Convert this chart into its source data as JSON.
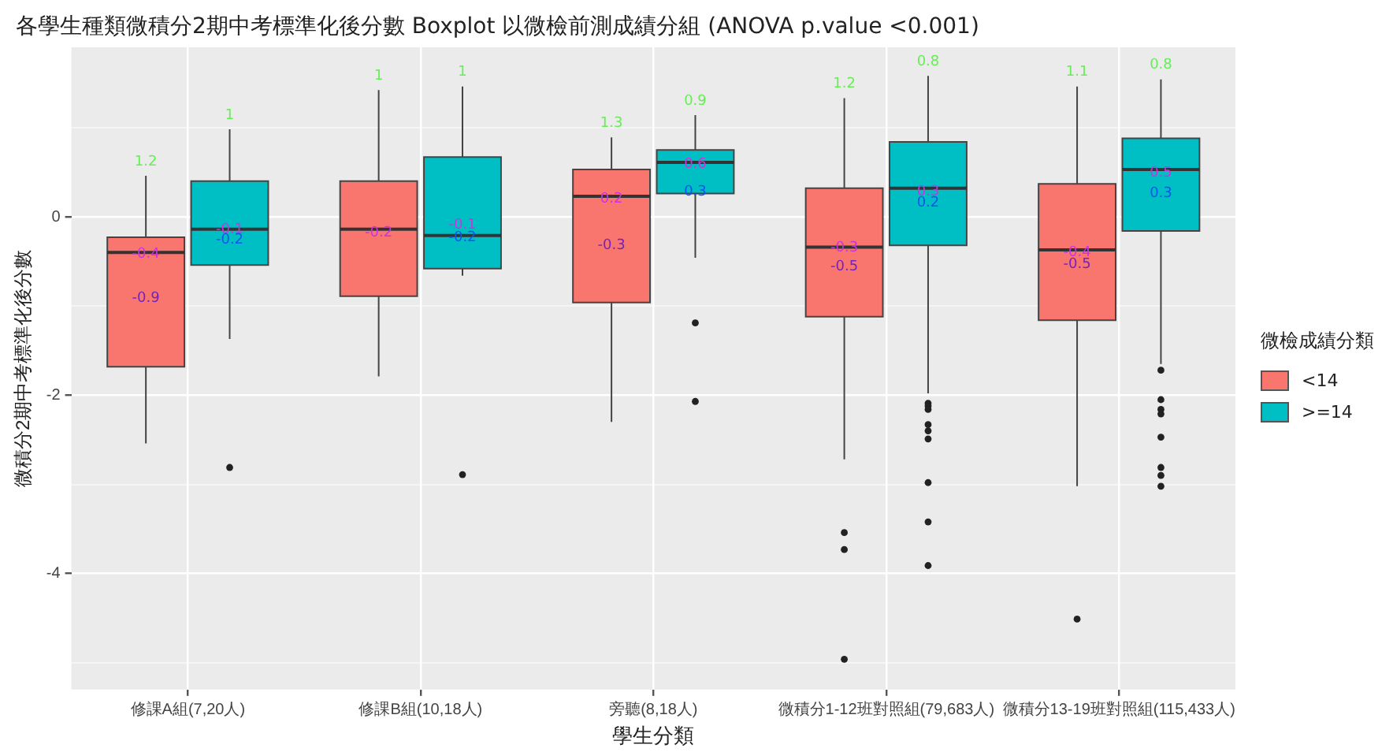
{
  "chart_data": {
    "type": "box",
    "title": "各學生種類微積分2期中考標準化後分數 Boxplot 以微檢前測成績分組 (ANOVA p.value <0.001)",
    "xlabel": "學生分類",
    "ylabel": "微積分2期中考標準化後分數",
    "legend_title": "微檢成績分類",
    "categories": [
      "修課A組(7,20人)",
      "修課B組(10,18人)",
      "旁聽(8,18人)",
      "微積分1-12班對照組(79,683人)",
      "微積分13-19班對照組(115,433人)"
    ],
    "series": [
      {
        "name": "<14",
        "color": "#f8766d",
        "boxes": [
          {
            "low": -2.54,
            "q1": -1.68,
            "median": -0.4,
            "q3": -0.23,
            "high": 0.46
          },
          {
            "low": -1.79,
            "q1": -0.89,
            "median": -0.14,
            "q3": 0.4,
            "high": 1.42
          },
          {
            "low": -2.3,
            "q1": -0.96,
            "median": 0.23,
            "q3": 0.53,
            "high": 0.89
          },
          {
            "low": -2.72,
            "q1": -1.12,
            "median": -0.34,
            "q3": 0.32,
            "high": 1.33,
            "outliers": [
              -3.54,
              -3.73,
              -4.96
            ]
          },
          {
            "low": -3.02,
            "q1": -1.16,
            "median": -0.37,
            "q3": 0.37,
            "high": 1.46,
            "outliers": [
              -4.51
            ]
          }
        ]
      },
      {
        "name": ">=14",
        "color": "#00bfc4",
        "boxes": [
          {
            "low": -1.37,
            "q1": -0.54,
            "median": -0.14,
            "q3": 0.4,
            "high": 0.98,
            "outliers": [
              -2.81
            ]
          },
          {
            "low": -0.66,
            "q1": -0.58,
            "median": -0.21,
            "q3": 0.67,
            "high": 1.46,
            "outliers": [
              -2.89
            ]
          },
          {
            "low": -0.46,
            "q1": 0.26,
            "median": 0.61,
            "q3": 0.75,
            "high": 1.14,
            "outliers": [
              -1.19,
              -2.07
            ]
          },
          {
            "low": -1.98,
            "q1": -0.32,
            "median": 0.32,
            "q3": 0.84,
            "high": 1.58,
            "outliers": [
              -2.09,
              -2.12,
              -2.16,
              -2.33,
              -2.4,
              -2.49,
              -2.98,
              -3.42,
              -3.91
            ]
          },
          {
            "low": -1.65,
            "q1": -0.16,
            "median": 0.53,
            "q3": 0.88,
            "high": 1.54,
            "outliers": [
              -1.72,
              -2.05,
              -2.16,
              -2.21,
              -2.47,
              -2.81,
              -2.9,
              -3.02
            ]
          }
        ]
      }
    ],
    "ylim": [
      -5.3,
      1.9
    ],
    "yticks": [
      {
        "value": -5,
        "label": null
      },
      -4,
      {
        "value": -3,
        "label": null
      },
      -2,
      {
        "value": -1,
        "label": null
      },
      0,
      {
        "value": 1,
        "label": null
      }
    ],
    "grid": true,
    "legend": "right",
    "annotations": [
      "1.2",
      "1",
      "1",
      "1",
      "1.3",
      "0.9",
      "1.2",
      "0.8",
      "1.1",
      "0.8",
      {
        "text": "-0.4",
        "x": "修課A組(7,20人)",
        "y": -0.42
      },
      {
        "text": "-0.9",
        "x": "修課A組(7,20人)",
        "y": -0.91
      },
      {
        "text": "-0.1",
        "x": "修課A組(7,20人)",
        "y": -0.14
      },
      {
        "text": "-0.2",
        "x": "修課A組(7,20人)",
        "y": -0.26
      },
      {
        "text": "-0.2",
        "x": "修課B組(10,18人)",
        "y": -0.18
      },
      {
        "text": "-0.1",
        "x": "修課B組(10,18人)",
        "y": -0.09
      },
      {
        "text": "-0.2",
        "x": "修課B組(10,18人)",
        "y": -0.23
      },
      {
        "text": "0.2",
        "x": "旁聽(8,18人)",
        "y": 0.2
      },
      {
        "text": "-0.3",
        "x": "旁聽(8,18人)",
        "y": -0.32
      },
      {
        "text": "0.6",
        "x": "旁聽(8,18人)",
        "y": 0.59
      },
      {
        "text": "0.3",
        "x": "旁聽(8,18人)",
        "y": 0.28
      },
      {
        "text": "-0.3",
        "x": "微積分1-12班對照組(79,683人)",
        "y": -0.35
      },
      {
        "text": "-0.5",
        "x": "微積分1-12班對照組(79,683人)",
        "y": -0.56
      },
      {
        "text": "0.3",
        "x": "微積分1-12班對照組(79,683人)",
        "y": 0.28
      },
      {
        "text": "0.2",
        "x": "微積分1-12班對照組(79,683人)",
        "y": 0.16
      },
      {
        "text": "-0.4",
        "x": "微積分13-19班對照組(115,433人)",
        "y": -0.4
      },
      {
        "text": "-0.5",
        "x": "微積分13-19班對照組(115,433人)",
        "y": -0.53
      },
      {
        "text": "0.5",
        "x": "微積分13-19班對照組(115,433人)",
        "y": 0.49
      },
      {
        "text": "0.3",
        "x": "微積分13-19班對照組(115,433人)",
        "y": 0.26
      }
    ]
  }
}
